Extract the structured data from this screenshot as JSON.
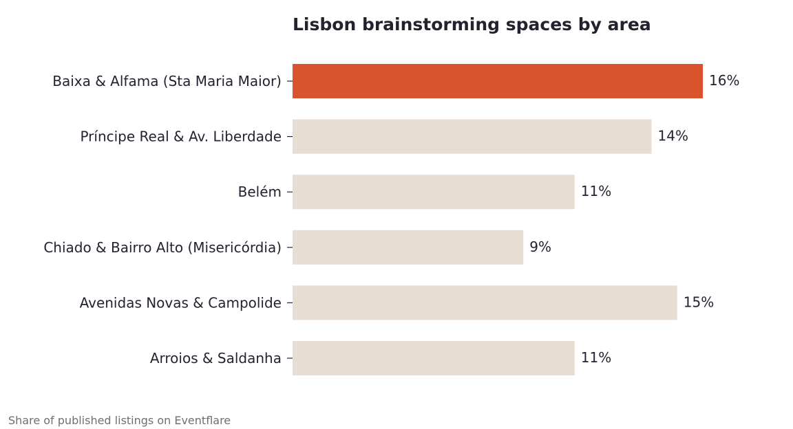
{
  "colors": {
    "highlight": "#d9542c",
    "muted": "#e7ddd3",
    "text": "#22232f",
    "footnote": "#6f6f6f"
  },
  "footnote": "Share of published listings on Eventflare",
  "chart_data": {
    "type": "bar",
    "orientation": "horizontal",
    "title": "Lisbon brainstorming spaces by area",
    "xlabel": "",
    "ylabel": "",
    "value_suffix": "%",
    "xlim": [
      0,
      16
    ],
    "grid": false,
    "legend": "none",
    "categories": [
      "Baixa & Alfama (Sta Maria Maior)",
      "Príncipe Real & Av. Liberdade",
      "Belém",
      "Chiado & Bairro Alto (Misericórdia)",
      "Avenidas Novas & Campolide",
      "Arroios & Saldanha"
    ],
    "values": [
      16,
      14,
      11,
      9,
      15,
      11
    ],
    "value_labels": [
      "16%",
      "14%",
      "11%",
      "9%",
      "15%",
      "11%"
    ],
    "highlighted_index": 0
  }
}
